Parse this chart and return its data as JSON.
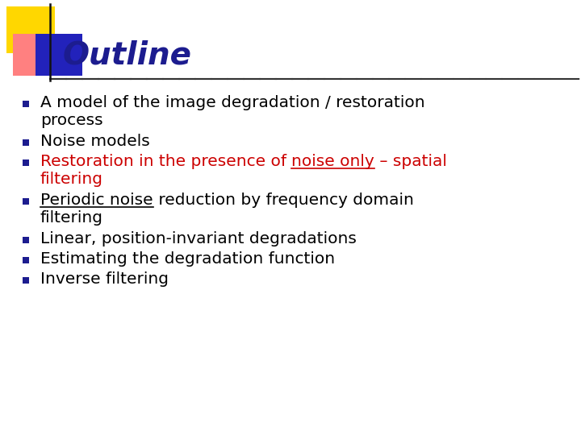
{
  "title": "Outline",
  "title_color": "#1c1c8f",
  "title_fontsize": 28,
  "background_color": "#ffffff",
  "bullet_color": "#1c1c8f",
  "items": [
    {
      "text_parts": [
        {
          "text": "A model of the image degradation / restoration\nprocess",
          "color": "#000000",
          "underline": false
        }
      ]
    },
    {
      "text_parts": [
        {
          "text": "Noise models",
          "color": "#000000",
          "underline": false
        }
      ]
    },
    {
      "text_parts": [
        {
          "text": "Restoration in the presence of ",
          "color": "#cc0000",
          "underline": false
        },
        {
          "text": "noise only",
          "color": "#cc0000",
          "underline": true
        },
        {
          "text": " – spatial\nfiltering",
          "color": "#cc0000",
          "underline": false
        }
      ]
    },
    {
      "text_parts": [
        {
          "text": "Periodic noise",
          "color": "#000000",
          "underline": true
        },
        {
          "text": " reduction by frequency domain\nfiltering",
          "color": "#000000",
          "underline": false
        }
      ]
    },
    {
      "text_parts": [
        {
          "text": "Linear, position-invariant degradations",
          "color": "#000000",
          "underline": false
        }
      ]
    },
    {
      "text_parts": [
        {
          "text": "Estimating the degradation function",
          "color": "#000000",
          "underline": false
        }
      ]
    },
    {
      "text_parts": [
        {
          "text": "Inverse filtering",
          "color": "#000000",
          "underline": false
        }
      ]
    }
  ]
}
